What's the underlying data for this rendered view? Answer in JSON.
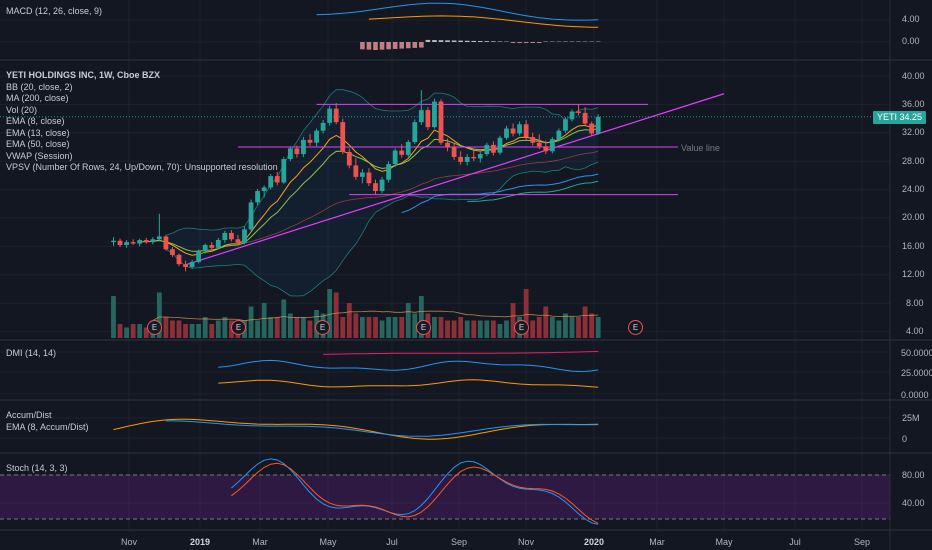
{
  "chart_data": {
    "type": "candlestick",
    "symbol": "YETI",
    "title": "YETI HOLDINGS INC, 1W, Cboe BZX",
    "last_price": "34.25",
    "price_axis": {
      "ticks": [
        "40.00",
        "36.00",
        "32.00",
        "28.00",
        "24.00",
        "20.00",
        "16.00",
        "12.00",
        "8.00",
        "4.00"
      ]
    },
    "time_axis": {
      "ticks": [
        "Nov",
        "2019",
        "Mar",
        "May",
        "Jul",
        "Sep",
        "Nov",
        "2020",
        "Mar",
        "May",
        "Jul",
        "Sep"
      ],
      "bold_ticks": [
        "2019",
        "2020"
      ]
    },
    "indicators_main": [
      "BB (20, close, 2)",
      "MA (200, close)",
      "Vol (20)",
      "EMA (8, close)",
      "EMA (13, close)",
      "EMA (50, close)",
      "VWAP (Session)",
      "VPSV (Number Of Rows, 24, Up/Down, 70): Unsupported resolution"
    ],
    "annotations": {
      "value_line": "Value line",
      "horizontal_levels": [
        36.0,
        30.0,
        23.3
      ],
      "event_marker": "E"
    },
    "candles": [
      {
        "week": 0,
        "o": 16.6,
        "h": 17.3,
        "l": 16.1,
        "c": 16.8
      },
      {
        "week": 1,
        "o": 16.8,
        "h": 17.1,
        "l": 15.9,
        "c": 16.2
      },
      {
        "week": 2,
        "o": 16.2,
        "h": 16.9,
        "l": 15.8,
        "c": 16.6
      },
      {
        "week": 3,
        "o": 16.6,
        "h": 17.0,
        "l": 16.2,
        "c": 16.4
      },
      {
        "week": 4,
        "o": 16.4,
        "h": 17.1,
        "l": 16.0,
        "c": 16.9
      },
      {
        "week": 5,
        "o": 16.9,
        "h": 17.2,
        "l": 16.4,
        "c": 16.6
      },
      {
        "week": 6,
        "o": 16.6,
        "h": 17.3,
        "l": 16.3,
        "c": 17.0
      },
      {
        "week": 7,
        "o": 17.0,
        "h": 20.6,
        "l": 16.8,
        "c": 17.4
      },
      {
        "week": 8,
        "o": 17.4,
        "h": 17.6,
        "l": 15.4,
        "c": 15.6
      },
      {
        "week": 9,
        "o": 15.6,
        "h": 15.9,
        "l": 14.5,
        "c": 14.8
      },
      {
        "week": 10,
        "o": 14.8,
        "h": 15.0,
        "l": 13.2,
        "c": 13.5
      },
      {
        "week": 11,
        "o": 13.5,
        "h": 14.0,
        "l": 12.5,
        "c": 13.1
      },
      {
        "week": 12,
        "o": 13.1,
        "h": 14.1,
        "l": 12.8,
        "c": 13.8
      },
      {
        "week": 13,
        "o": 13.8,
        "h": 15.6,
        "l": 13.6,
        "c": 15.3
      },
      {
        "week": 14,
        "o": 15.3,
        "h": 16.4,
        "l": 15.0,
        "c": 16.2
      },
      {
        "week": 15,
        "o": 16.2,
        "h": 16.6,
        "l": 15.5,
        "c": 15.8
      },
      {
        "week": 16,
        "o": 15.8,
        "h": 17.2,
        "l": 15.6,
        "c": 16.9
      },
      {
        "week": 17,
        "o": 16.9,
        "h": 18.2,
        "l": 16.5,
        "c": 17.9
      },
      {
        "week": 18,
        "o": 17.9,
        "h": 18.3,
        "l": 16.7,
        "c": 17.0
      },
      {
        "week": 19,
        "o": 17.0,
        "h": 17.6,
        "l": 16.2,
        "c": 16.5
      },
      {
        "week": 20,
        "o": 16.5,
        "h": 18.8,
        "l": 16.3,
        "c": 18.4
      },
      {
        "week": 21,
        "o": 18.4,
        "h": 22.6,
        "l": 18.2,
        "c": 22.2
      },
      {
        "week": 22,
        "o": 22.2,
        "h": 24.1,
        "l": 21.8,
        "c": 23.8
      },
      {
        "week": 23,
        "o": 23.8,
        "h": 24.6,
        "l": 22.9,
        "c": 24.3
      },
      {
        "week": 24,
        "o": 24.3,
        "h": 26.2,
        "l": 24.0,
        "c": 25.9
      },
      {
        "week": 25,
        "o": 25.9,
        "h": 26.5,
        "l": 24.6,
        "c": 25.0
      },
      {
        "week": 26,
        "o": 25.0,
        "h": 28.6,
        "l": 24.8,
        "c": 28.3
      },
      {
        "week": 27,
        "o": 28.3,
        "h": 30.1,
        "l": 28.0,
        "c": 29.8
      },
      {
        "week": 28,
        "o": 29.8,
        "h": 30.2,
        "l": 28.5,
        "c": 29.0
      },
      {
        "week": 29,
        "o": 29.0,
        "h": 31.4,
        "l": 28.6,
        "c": 31.0
      },
      {
        "week": 30,
        "o": 31.0,
        "h": 31.8,
        "l": 30.2,
        "c": 30.6
      },
      {
        "week": 31,
        "o": 30.6,
        "h": 32.6,
        "l": 30.1,
        "c": 32.3
      },
      {
        "week": 32,
        "o": 32.3,
        "h": 33.8,
        "l": 31.9,
        "c": 33.4
      },
      {
        "week": 33,
        "o": 33.4,
        "h": 35.8,
        "l": 33.0,
        "c": 35.4
      },
      {
        "week": 34,
        "o": 35.4,
        "h": 36.2,
        "l": 33.2,
        "c": 33.5
      },
      {
        "week": 35,
        "o": 33.5,
        "h": 34.0,
        "l": 29.0,
        "c": 29.3
      },
      {
        "week": 36,
        "o": 29.3,
        "h": 29.8,
        "l": 27.0,
        "c": 27.4
      },
      {
        "week": 37,
        "o": 27.4,
        "h": 28.4,
        "l": 25.4,
        "c": 25.8
      },
      {
        "week": 38,
        "o": 25.8,
        "h": 26.9,
        "l": 24.9,
        "c": 26.4
      },
      {
        "week": 39,
        "o": 26.4,
        "h": 27.0,
        "l": 24.5,
        "c": 24.9
      },
      {
        "week": 40,
        "o": 24.9,
        "h": 25.4,
        "l": 23.4,
        "c": 23.8
      },
      {
        "week": 41,
        "o": 23.8,
        "h": 25.8,
        "l": 23.5,
        "c": 25.4
      },
      {
        "week": 42,
        "o": 25.4,
        "h": 28.0,
        "l": 25.0,
        "c": 27.6
      },
      {
        "week": 43,
        "o": 27.6,
        "h": 29.8,
        "l": 27.2,
        "c": 29.5
      },
      {
        "week": 44,
        "o": 29.5,
        "h": 30.4,
        "l": 28.5,
        "c": 28.9
      },
      {
        "week": 45,
        "o": 28.9,
        "h": 31.0,
        "l": 28.6,
        "c": 30.7
      },
      {
        "week": 46,
        "o": 30.7,
        "h": 33.9,
        "l": 30.4,
        "c": 33.5
      },
      {
        "week": 47,
        "o": 33.5,
        "h": 38.0,
        "l": 33.1,
        "c": 35.2
      },
      {
        "week": 48,
        "o": 35.2,
        "h": 35.6,
        "l": 32.4,
        "c": 32.8
      },
      {
        "week": 49,
        "o": 32.8,
        "h": 36.8,
        "l": 32.6,
        "c": 36.4
      },
      {
        "week": 50,
        "o": 36.4,
        "h": 36.7,
        "l": 30.3,
        "c": 30.6
      },
      {
        "week": 51,
        "o": 30.6,
        "h": 31.2,
        "l": 29.4,
        "c": 30.0
      },
      {
        "week": 52,
        "o": 30.0,
        "h": 30.6,
        "l": 28.2,
        "c": 28.6
      },
      {
        "week": 53,
        "o": 28.6,
        "h": 29.4,
        "l": 27.5,
        "c": 27.9
      },
      {
        "week": 54,
        "o": 27.9,
        "h": 29.0,
        "l": 27.4,
        "c": 28.6
      },
      {
        "week": 55,
        "o": 28.6,
        "h": 29.6,
        "l": 28.0,
        "c": 28.4
      },
      {
        "week": 56,
        "o": 28.4,
        "h": 29.3,
        "l": 27.8,
        "c": 29.0
      },
      {
        "week": 57,
        "o": 29.0,
        "h": 30.6,
        "l": 28.7,
        "c": 30.3
      },
      {
        "week": 58,
        "o": 30.3,
        "h": 30.8,
        "l": 28.8,
        "c": 29.2
      },
      {
        "week": 59,
        "o": 29.2,
        "h": 31.6,
        "l": 28.9,
        "c": 31.3
      },
      {
        "week": 60,
        "o": 31.3,
        "h": 33.0,
        "l": 31.0,
        "c": 32.6
      },
      {
        "week": 61,
        "o": 32.6,
        "h": 33.3,
        "l": 31.5,
        "c": 31.9
      },
      {
        "week": 62,
        "o": 31.9,
        "h": 33.6,
        "l": 31.6,
        "c": 33.2
      },
      {
        "week": 63,
        "o": 33.2,
        "h": 33.8,
        "l": 31.0,
        "c": 31.4
      },
      {
        "week": 64,
        "o": 31.4,
        "h": 32.0,
        "l": 30.2,
        "c": 30.6
      },
      {
        "week": 65,
        "o": 30.6,
        "h": 31.8,
        "l": 29.7,
        "c": 30.1
      },
      {
        "week": 66,
        "o": 30.1,
        "h": 30.9,
        "l": 29.0,
        "c": 29.4
      },
      {
        "week": 67,
        "o": 29.4,
        "h": 31.4,
        "l": 29.1,
        "c": 31.1
      },
      {
        "week": 68,
        "o": 31.1,
        "h": 32.6,
        "l": 30.8,
        "c": 32.3
      },
      {
        "week": 69,
        "o": 32.3,
        "h": 34.2,
        "l": 32.0,
        "c": 33.9
      },
      {
        "week": 70,
        "o": 33.9,
        "h": 35.3,
        "l": 33.6,
        "c": 35.0
      },
      {
        "week": 71,
        "o": 35.0,
        "h": 36.0,
        "l": 34.4,
        "c": 34.8
      },
      {
        "week": 72,
        "o": 34.8,
        "h": 35.6,
        "l": 33.0,
        "c": 33.3
      },
      {
        "week": 73,
        "o": 33.3,
        "h": 33.6,
        "l": 31.6,
        "c": 31.9
      },
      {
        "week": 74,
        "o": 31.9,
        "h": 34.6,
        "l": 31.7,
        "c": 34.25
      }
    ],
    "volume": [
      12,
      4,
      3,
      4,
      4,
      3,
      5,
      13,
      6,
      5,
      5,
      4,
      4,
      4,
      6,
      4,
      5,
      6,
      5,
      4,
      5,
      9,
      5,
      10,
      6,
      6,
      11,
      7,
      6,
      6,
      5,
      8,
      7,
      14,
      13,
      6,
      10,
      7,
      6,
      6,
      6,
      5,
      6,
      6,
      6,
      10,
      7,
      12,
      7,
      6,
      6,
      5,
      5,
      6,
      5,
      5,
      5,
      5,
      5,
      4,
      5,
      10,
      6,
      14,
      5,
      6,
      9,
      6,
      5,
      7,
      6,
      6,
      9,
      7,
      6
    ],
    "vol_axis_ref": 8,
    "macd": {
      "label": "MACD (12, 26, close, 9)",
      "ticks": [
        "4.00",
        "0.00"
      ]
    },
    "dmi": {
      "label": "DMI (14, 14)",
      "ticks": [
        "50.0000",
        "25.0000",
        "0.0000"
      ]
    },
    "accum_dist": {
      "labels": [
        "Accum/Dist",
        "EMA (8, Accum/Dist)"
      ],
      "ticks": [
        "25M",
        "0"
      ]
    },
    "stoch": {
      "label": "Stoch (14, 3, 3)",
      "ticks": [
        "80.00",
        "40.00"
      ]
    }
  },
  "colors": {
    "up": "#26a69a",
    "down": "#ef5350",
    "magenta": "#e040fb",
    "vol_up": "#26665e",
    "vol_down": "#8c2f39"
  }
}
